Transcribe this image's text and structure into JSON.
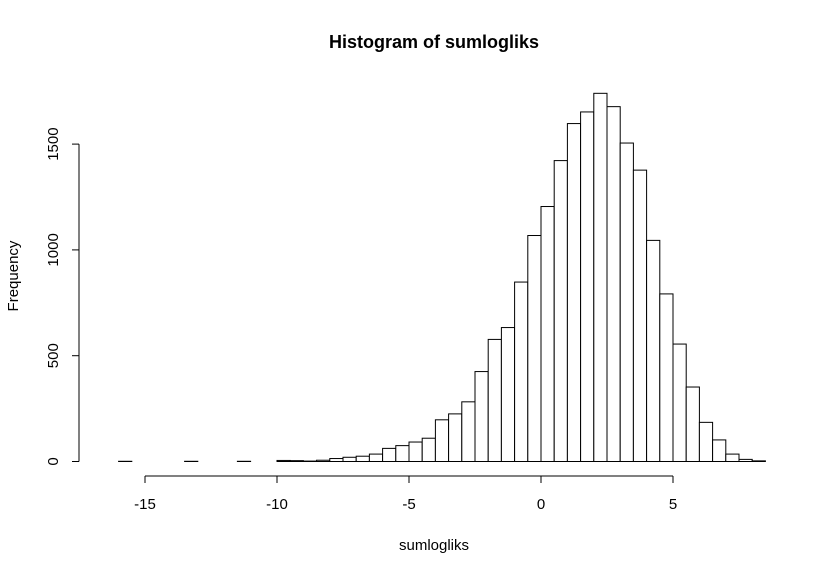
{
  "chart_data": {
    "type": "bar",
    "title": "Histogram of sumlogliks",
    "xlabel": "sumlogliks",
    "ylabel": "Frequency",
    "bin_width": 0.5,
    "bin_starts": [
      -16.5,
      -16,
      -15.5,
      -15,
      -14.5,
      -14,
      -13.5,
      -13,
      -12.5,
      -12,
      -11.5,
      -11,
      -10.5,
      -10,
      -9.5,
      -9,
      -8.5,
      -8,
      -7.5,
      -7,
      -6.5,
      -6,
      -5.5,
      -5,
      -4.5,
      -4,
      -3.5,
      -3,
      -2.5,
      -2,
      -1.5,
      -1,
      -0.5,
      0,
      0.5,
      1,
      1.5,
      2,
      2.5,
      3,
      3.5,
      4,
      4.5,
      5,
      5.5,
      6,
      6.5,
      7,
      7.5,
      8
    ],
    "values": [
      0,
      1,
      0,
      0,
      0,
      0,
      1,
      0,
      0,
      0,
      1,
      0,
      0,
      5,
      4,
      2,
      6,
      14,
      20,
      25,
      35,
      62,
      75,
      92,
      110,
      197,
      225,
      282,
      425,
      577,
      633,
      848,
      1068,
      1205,
      1422,
      1597,
      1652,
      1740,
      1677,
      1505,
      1377,
      1045,
      792,
      555,
      352,
      185,
      102,
      35,
      10,
      3
    ],
    "xlim": [
      -16.5,
      8.5
    ],
    "ylim": [
      0,
      1750
    ],
    "x_ticks": [
      -15,
      -10,
      -5,
      0,
      5
    ],
    "x_tick_labels": [
      "-15",
      "-10",
      "-5",
      "0",
      "5"
    ],
    "y_ticks": [
      0,
      500,
      1000,
      1500
    ],
    "y_tick_labels": [
      "0",
      "500",
      "1000",
      "1500"
    ]
  }
}
